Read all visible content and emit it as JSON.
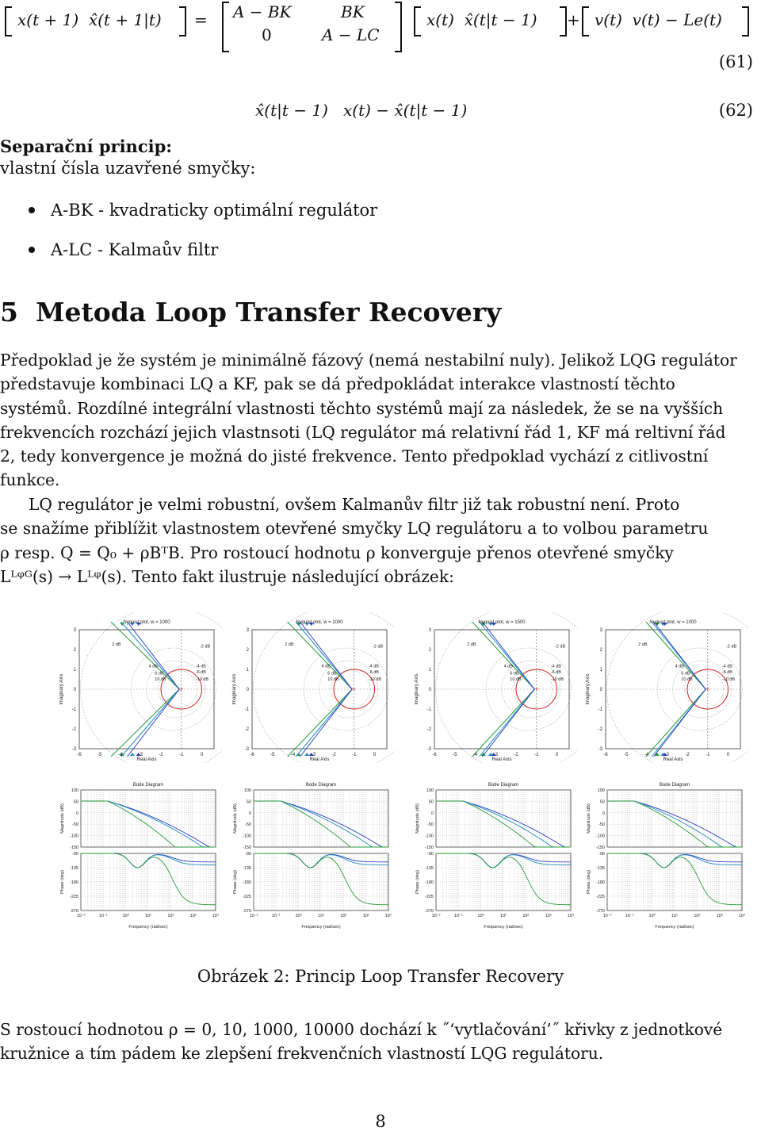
{
  "equations": {
    "eq61": {
      "lhs": [
        "x(t + 1)",
        "x̂(t + 1|t)"
      ],
      "equals": "=",
      "matrix_row1": [
        "A − BK",
        "BK"
      ],
      "matrix_row2": [
        "0",
        "A − LC"
      ],
      "state": [
        "x(t)",
        "x̂(t|t − 1)"
      ],
      "plus": "+",
      "noise": [
        "v(t)",
        "v(t) − Le(t)"
      ],
      "number": "(61)"
    },
    "eq62": {
      "terms": [
        "x̂(t|t − 1)",
        "x(t) − x̂(t|t − 1)"
      ],
      "number": "(62)"
    }
  },
  "separation": {
    "title": "Separační princip:",
    "subtitle": "vlastní čísla uzavřené smyčky:",
    "bullets": [
      "A-BK - kvadraticky optimální regulátor",
      "A-LC - Kalmaův filtr"
    ]
  },
  "section": {
    "number": "5",
    "title": "Metoda Loop Transfer Recovery"
  },
  "paragraphs": {
    "p1_lines": [
      "Předpoklad je že systém je minimálně fázový (nemá nestabilní nuly). Jelikož LQG regulátor",
      "představuje kombinaci LQ a KF, pak se dá předpokládat interakce vlastností těchto",
      "systémů. Rozdílné integrální vlastnosti těchto systémů mají za následek, že se na vyšších",
      "frekvencích rozchází jejich vlastnsoti (LQ regulátor má relativní řád 1, KF má reltivní řád",
      "2, tedy konvergence je možná do jisté frekvence. Tento předpoklad vychází z citlivostní",
      "funkce."
    ],
    "p2_lines": [
      "LQ regulátor je velmi robustní, ovšem Kalmanův filtr již tak robustní není. Proto",
      "se snažíme přiblížit vlastnostem otevřené smyčky LQ regulátoru a to volbou parametru",
      "ρ resp. Q = Q₀ + ρBᵀB. Pro rostoucí hodnotu ρ konverguje přenos otevřené smyčky",
      "Lᴸᵠᴳ(s) → Lᴸᵠ(s). Tento fakt ilustruje následující obrázek:"
    ],
    "p3_lines": [
      "S rostoucí hodnotou ρ = 0, 10, 1000, 10000 dochází k ˝‘vytlačování’˝ křivky z jednotkové",
      "kružnice a tím pádem ke zlepšení frekvenčních vlastností LQG regulátoru."
    ]
  },
  "figure": {
    "caption": "Obrázek 2: Princip Loop Transfer Recovery",
    "colors": {
      "lqg": "#2a9a3a",
      "lq": "#2b3fc8",
      "kf": "#1f8fbf",
      "circle": "#d02020",
      "grid": "#888888"
    },
    "nyquist_titles": [
      "Nyquist plot, w = 1000",
      "Nyquist plot, w = 1000",
      "Nyquist plot, w = 1500",
      "Nyquist plot, w = 1000"
    ],
    "bode_title": "Bode Diagram",
    "nyquist_xlabel": "Real Axis",
    "nyquist_ylabel": "Imaginary Axis",
    "bode_ylabel_mag": "Magnitude (dB)",
    "bode_ylabel_phase": "Phase (deg)",
    "bode_xlabel": "Frequency (rad/sec)",
    "nyquist_xticks": [
      "-6",
      "-5",
      "-4",
      "-3",
      "-2",
      "-1",
      "0"
    ],
    "nyquist_yticks": [
      "3",
      "2",
      "1",
      "0",
      "-1",
      "-2",
      "-3"
    ],
    "db_labels": [
      "2 dB",
      "-2 dB",
      "4 dB",
      "-4 dB",
      "6 dB",
      "-6 dB",
      "10 dB",
      "-10 dB"
    ],
    "bode_mag_ticks": [
      "100",
      "50",
      "0",
      "-50",
      "-100",
      "-150"
    ],
    "bode_phase_ticks": [
      "-90",
      "-135",
      "-180",
      "-225",
      "-270"
    ],
    "bode_freq_ticks": [
      "10⁻²",
      "10⁻¹",
      "10⁰",
      "10¹",
      "10²",
      "10³",
      "10⁴"
    ]
  },
  "page_number": "8"
}
